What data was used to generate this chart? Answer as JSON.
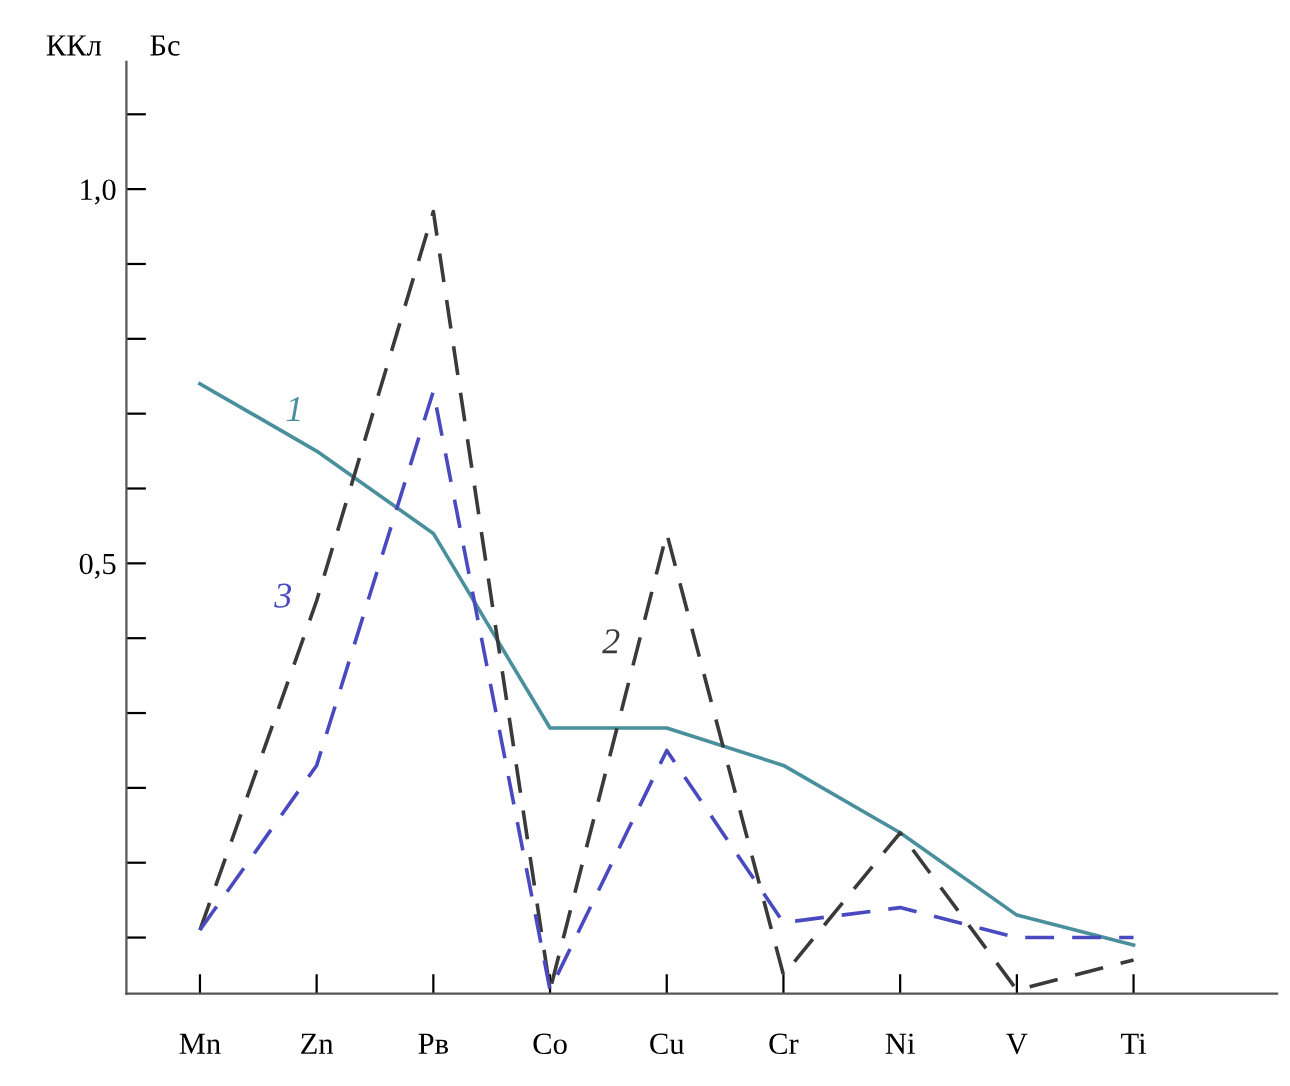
{
  "chart_data": {
    "type": "line",
    "ylabel": "ККл",
    "categories": [
      "Mn",
      "Zn",
      "Pв",
      "Co",
      "Cu",
      "Cr",
      "Ni",
      "V",
      "Ti"
    ],
    "series": [
      {
        "name": "1",
        "color": "#4a8f9c",
        "line_style": "solid",
        "values": [
          0.74,
          0.65,
          0.54,
          0.28,
          0.28,
          0.23,
          0.14,
          0.03,
          -0.01
        ]
      },
      {
        "name": "2",
        "color": "#3a3a3a",
        "line_style": "dashed",
        "values": [
          0.01,
          0.45,
          0.97,
          -0.07,
          0.54,
          -0.05,
          0.14,
          -0.07,
          -0.03
        ]
      },
      {
        "name": "3",
        "color": "#4a4ac0",
        "line_style": "dashed",
        "values": [
          0.01,
          0.23,
          0.73,
          -0.07,
          0.25,
          0.02,
          0.04,
          0.0,
          0.0
        ]
      }
    ],
    "annotations": [
      "Бс"
    ],
    "ylim": [
      -0.075,
      1.17
    ],
    "yticks": [
      {
        "value": 0.0,
        "label": null
      },
      {
        "value": 0.1,
        "label": null
      },
      {
        "value": 0.2,
        "label": null
      },
      {
        "value": 0.3,
        "label": null
      },
      {
        "value": 0.4,
        "label": null
      },
      {
        "value": 0.5,
        "label": "0,5"
      },
      {
        "value": 0.6,
        "label": null
      },
      {
        "value": 0.7,
        "label": null
      },
      {
        "value": 0.8,
        "label": null
      },
      {
        "value": 0.9,
        "label": null
      },
      {
        "value": 1.0,
        "label": "1,0"
      },
      {
        "value": 1.1,
        "label": null
      }
    ],
    "grid": false,
    "legend": false
  }
}
